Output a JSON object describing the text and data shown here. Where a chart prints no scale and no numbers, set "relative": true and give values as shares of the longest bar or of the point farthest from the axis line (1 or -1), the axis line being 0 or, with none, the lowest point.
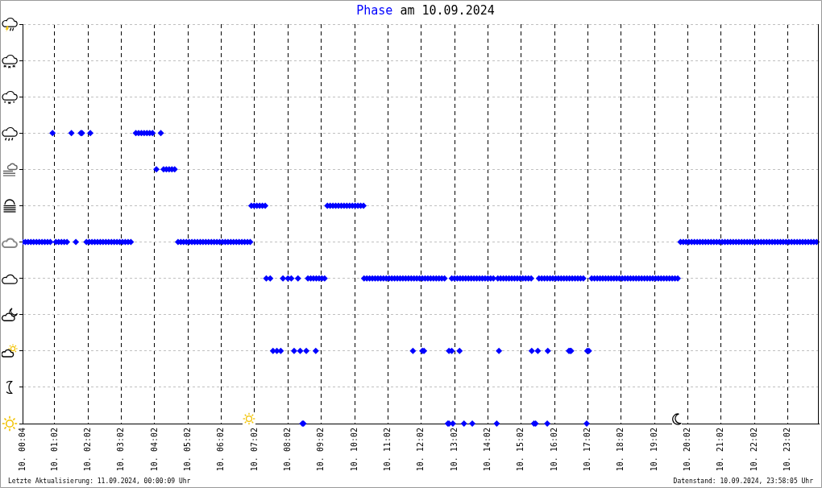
{
  "chart_data": {
    "type": "scatter",
    "title": "am 10.09.2024",
    "legend": "top",
    "marker": "diamond",
    "grid": true,
    "tick_labels": "x",
    "relative": true,
    "annotations": [
      "Letzte Aktualisierung: 11.09.2024, 00:00:09 Uhr",
      "Datenstand: 10.09.2024, 23:58:05 Uhr"
    ],
    "xlim": [
      "2024-09-10T00:04",
      "2024-09-10T23:58"
    ],
    "xticks": [
      {
        "value": "2024-09-10T00:04",
        "label": "10. 00:04"
      },
      {
        "value": "2024-09-10T01:02",
        "label": "10. 01:02"
      },
      {
        "value": "2024-09-10T02:02",
        "label": "10. 02:02"
      },
      {
        "value": "2024-09-10T03:02",
        "label": "10. 03:02"
      },
      {
        "value": "2024-09-10T04:02",
        "label": "10. 04:02"
      },
      {
        "value": "2024-09-10T05:02",
        "label": "10. 05:02"
      },
      {
        "value": "2024-09-10T06:02",
        "label": "10. 06:02"
      },
      {
        "value": "2024-09-10T07:02",
        "label": "10. 07:02"
      },
      {
        "value": "2024-09-10T08:02",
        "label": "10. 08:02"
      },
      {
        "value": "2024-09-10T09:02",
        "label": "10. 09:02"
      },
      {
        "value": "2024-09-10T10:02",
        "label": "10. 10:02"
      },
      {
        "value": "2024-09-10T11:02",
        "label": "10. 11:02"
      },
      {
        "value": "2024-09-10T12:02",
        "label": "10. 12:02"
      },
      {
        "value": "2024-09-10T13:02",
        "label": "10. 13:02"
      },
      {
        "value": "2024-09-10T14:02",
        "label": "10. 14:02"
      },
      {
        "value": "2024-09-10T15:02",
        "label": "10. 15:02"
      },
      {
        "value": "2024-09-10T16:02",
        "label": "10. 16:02"
      },
      {
        "value": "2024-09-10T17:02",
        "label": "10. 17:02"
      },
      {
        "value": "2024-09-10T18:02",
        "label": "10. 18:02"
      },
      {
        "value": "2024-09-10T19:02",
        "label": "10. 19:02"
      },
      {
        "value": "2024-09-10T20:02",
        "label": "10. 20:02"
      },
      {
        "value": "2024-09-10T21:02",
        "label": "10. 21:02"
      },
      {
        "value": "2024-09-10T22:02",
        "label": "10. 22:02"
      },
      {
        "value": "2024-09-10T23:02",
        "label": "10. 23:02"
      }
    ],
    "series": [
      {
        "name": "Phase",
        "color": "#0000ff",
        "x": [
          "2024-09-10T00:04",
          "2024-09-10T00:09",
          "2024-09-10T00:14",
          "2024-09-10T00:19",
          "2024-09-10T00:24",
          "2024-09-10T00:29",
          "2024-09-10T00:34",
          "2024-09-10T00:39",
          "2024-09-10T00:44",
          "2024-09-10T00:49",
          "2024-09-10T00:54",
          "2024-09-10T01:04",
          "2024-09-10T01:09",
          "2024-09-10T01:14",
          "2024-09-10T01:19",
          "2024-09-10T01:24",
          "2024-09-10T01:40",
          "2024-09-10T01:59",
          "2024-09-10T02:04",
          "2024-09-10T02:09",
          "2024-09-10T02:14",
          "2024-09-10T02:19",
          "2024-09-10T02:24",
          "2024-09-10T02:29",
          "2024-09-10T02:34",
          "2024-09-10T02:39",
          "2024-09-10T02:44",
          "2024-09-10T02:49",
          "2024-09-10T02:54",
          "2024-09-10T02:59",
          "2024-09-10T03:04",
          "2024-09-10T03:09",
          "2024-09-10T03:14",
          "2024-09-10T03:19",
          "2024-09-10T04:44",
          "2024-09-10T04:49",
          "2024-09-10T04:54",
          "2024-09-10T04:59",
          "2024-09-10T05:04",
          "2024-09-10T05:09",
          "2024-09-10T05:14",
          "2024-09-10T05:19",
          "2024-09-10T05:24",
          "2024-09-10T05:29",
          "2024-09-10T05:34",
          "2024-09-10T05:39",
          "2024-09-10T05:44",
          "2024-09-10T05:49",
          "2024-09-10T05:54",
          "2024-09-10T05:59",
          "2024-09-10T06:04",
          "2024-09-10T06:09",
          "2024-09-10T06:14",
          "2024-09-10T06:19",
          "2024-09-10T06:24",
          "2024-09-10T06:29",
          "2024-09-10T06:34",
          "2024-09-10T06:39",
          "2024-09-10T06:44",
          "2024-09-10T06:49",
          "2024-09-10T06:54",
          "2024-09-10T19:49",
          "2024-09-10T19:54",
          "2024-09-10T19:59",
          "2024-09-10T20:04",
          "2024-09-10T20:09",
          "2024-09-10T20:14",
          "2024-09-10T20:19",
          "2024-09-10T20:24",
          "2024-09-10T20:29",
          "2024-09-10T20:34",
          "2024-09-10T20:39",
          "2024-09-10T20:44",
          "2024-09-10T20:49",
          "2024-09-10T20:54",
          "2024-09-10T20:59",
          "2024-09-10T21:04",
          "2024-09-10T21:09",
          "2024-09-10T21:14",
          "2024-09-10T21:19",
          "2024-09-10T21:24",
          "2024-09-10T21:29",
          "2024-09-10T21:34",
          "2024-09-10T21:39",
          "2024-09-10T21:44",
          "2024-09-10T21:49",
          "2024-09-10T21:54",
          "2024-09-10T21:59",
          "2024-09-10T22:04",
          "2024-09-10T22:09",
          "2024-09-10T22:14",
          "2024-09-10T22:19",
          "2024-09-10T22:24",
          "2024-09-10T22:29",
          "2024-09-10T22:34",
          "2024-09-10T22:39",
          "2024-09-10T22:44",
          "2024-09-10T22:49",
          "2024-09-10T22:54",
          "2024-09-10T22:59",
          "2024-09-10T23:04",
          "2024-09-10T23:09",
          "2024-09-10T23:14",
          "2024-09-10T23:19",
          "2024-09-10T23:24",
          "2024-09-10T23:29",
          "2024-09-10T23:34",
          "2024-09-10T23:39",
          "2024-09-10T23:44",
          "2024-09-10T23:49",
          "2024-09-10T23:54",
          "2024-09-10T00:58",
          "2024-09-10T01:32",
          "2024-09-10T01:49",
          "2024-09-10T01:51",
          "2024-09-10T02:06",
          "2024-09-10T03:28",
          "2024-09-10T03:33",
          "2024-09-10T03:38",
          "2024-09-10T03:43",
          "2024-09-10T03:48",
          "2024-09-10T03:53",
          "2024-09-10T03:58",
          "2024-09-10T04:13",
          "2024-09-10T04:05",
          "2024-09-10T04:18",
          "2024-09-10T04:23",
          "2024-09-10T04:28",
          "2024-09-10T04:33",
          "2024-09-10T04:38",
          "2024-09-10T06:56",
          "2024-09-10T07:01",
          "2024-09-10T07:06",
          "2024-09-10T07:11",
          "2024-09-10T07:16",
          "2024-09-10T07:21",
          "2024-09-10T09:13",
          "2024-09-10T09:18",
          "2024-09-10T09:23",
          "2024-09-10T09:28",
          "2024-09-10T09:33",
          "2024-09-10T09:38",
          "2024-09-10T09:43",
          "2024-09-10T09:48",
          "2024-09-10T09:53",
          "2024-09-10T09:58",
          "2024-09-10T10:03",
          "2024-09-10T10:08",
          "2024-09-10T10:13",
          "2024-09-10T10:18",
          "2024-09-10T07:23",
          "2024-09-10T07:30",
          "2024-09-10T07:53",
          "2024-09-10T08:02",
          "2024-09-10T08:08",
          "2024-09-10T08:20",
          "2024-09-10T08:38",
          "2024-09-10T08:43",
          "2024-09-10T08:48",
          "2024-09-10T08:53",
          "2024-09-10T08:58",
          "2024-09-10T09:03",
          "2024-09-10T09:08",
          "2024-09-10T10:19",
          "2024-09-10T10:24",
          "2024-09-10T10:29",
          "2024-09-10T10:34",
          "2024-09-10T10:39",
          "2024-09-10T10:44",
          "2024-09-10T10:49",
          "2024-09-10T10:54",
          "2024-09-10T10:59",
          "2024-09-10T11:04",
          "2024-09-10T11:09",
          "2024-09-10T11:14",
          "2024-09-10T11:19",
          "2024-09-10T11:24",
          "2024-09-10T11:29",
          "2024-09-10T11:34",
          "2024-09-10T11:39",
          "2024-09-10T11:44",
          "2024-09-10T11:49",
          "2024-09-10T11:54",
          "2024-09-10T11:59",
          "2024-09-10T12:04",
          "2024-09-10T12:09",
          "2024-09-10T12:14",
          "2024-09-10T12:19",
          "2024-09-10T12:24",
          "2024-09-10T12:29",
          "2024-09-10T12:34",
          "2024-09-10T12:39",
          "2024-09-10T12:44",
          "2024-09-10T12:57",
          "2024-09-10T13:02",
          "2024-09-10T13:07",
          "2024-09-10T13:12",
          "2024-09-10T13:17",
          "2024-09-10T13:22",
          "2024-09-10T13:27",
          "2024-09-10T13:32",
          "2024-09-10T13:37",
          "2024-09-10T13:42",
          "2024-09-10T13:47",
          "2024-09-10T13:52",
          "2024-09-10T13:57",
          "2024-09-10T14:02",
          "2024-09-10T14:07",
          "2024-09-10T14:12",
          "2024-09-10T14:20",
          "2024-09-10T14:25",
          "2024-09-10T14:30",
          "2024-09-10T14:35",
          "2024-09-10T14:40",
          "2024-09-10T14:45",
          "2024-09-10T14:50",
          "2024-09-10T14:55",
          "2024-09-10T15:00",
          "2024-09-10T15:05",
          "2024-09-10T15:10",
          "2024-09-10T15:15",
          "2024-09-10T15:20",
          "2024-09-10T15:34",
          "2024-09-10T15:39",
          "2024-09-10T15:44",
          "2024-09-10T15:49",
          "2024-09-10T15:54",
          "2024-09-10T15:59",
          "2024-09-10T16:04",
          "2024-09-10T16:09",
          "2024-09-10T16:14",
          "2024-09-10T16:19",
          "2024-09-10T16:24",
          "2024-09-10T16:29",
          "2024-09-10T16:34",
          "2024-09-10T16:39",
          "2024-09-10T16:44",
          "2024-09-10T16:49",
          "2024-09-10T16:54",
          "2024-09-10T17:09",
          "2024-09-10T17:14",
          "2024-09-10T17:19",
          "2024-09-10T17:24",
          "2024-09-10T17:29",
          "2024-09-10T17:34",
          "2024-09-10T17:39",
          "2024-09-10T17:44",
          "2024-09-10T17:49",
          "2024-09-10T17:54",
          "2024-09-10T17:59",
          "2024-09-10T18:04",
          "2024-09-10T18:09",
          "2024-09-10T18:14",
          "2024-09-10T18:19",
          "2024-09-10T18:24",
          "2024-09-10T18:29",
          "2024-09-10T18:34",
          "2024-09-10T18:39",
          "2024-09-10T18:44",
          "2024-09-10T18:49",
          "2024-09-10T18:54",
          "2024-09-10T18:59",
          "2024-09-10T19:04",
          "2024-09-10T19:09",
          "2024-09-10T19:14",
          "2024-09-10T19:19",
          "2024-09-10T19:24",
          "2024-09-10T19:29",
          "2024-09-10T19:34",
          "2024-09-10T19:39",
          "2024-09-10T19:44",
          "2024-09-10T07:35",
          "2024-09-10T07:42",
          "2024-09-10T07:49",
          "2024-09-10T08:13",
          "2024-09-10T08:24",
          "2024-09-10T08:35",
          "2024-09-10T08:52",
          "2024-09-10T11:47",
          "2024-09-10T12:04",
          "2024-09-10T12:07",
          "2024-09-10T12:52",
          "2024-09-10T12:57",
          "2024-09-10T13:11",
          "2024-09-10T14:22",
          "2024-09-10T15:21",
          "2024-09-10T15:32",
          "2024-09-10T15:50",
          "2024-09-10T16:28",
          "2024-09-10T16:30",
          "2024-09-10T16:32",
          "2024-09-10T17:01",
          "2024-09-10T17:04",
          "2024-09-10T08:28",
          "2024-09-10T08:30",
          "2024-09-10T12:50",
          "2024-09-10T12:52",
          "2024-09-10T12:59",
          "2024-09-10T13:19",
          "2024-09-10T13:34",
          "2024-09-10T14:18",
          "2024-09-10T15:25",
          "2024-09-10T15:28",
          "2024-09-10T15:49",
          "2024-09-10T17:00"
        ],
        "values": [
          0.625,
          0.625,
          0.625,
          0.625,
          0.625,
          0.625,
          0.625,
          0.625,
          0.625,
          0.625,
          0.625,
          0.625,
          0.625,
          0.625,
          0.625,
          0.625,
          0.625,
          0.625,
          0.625,
          0.625,
          0.625,
          0.625,
          0.625,
          0.625,
          0.625,
          0.625,
          0.625,
          0.625,
          0.625,
          0.625,
          0.625,
          0.625,
          0.625,
          0.625,
          0.625,
          0.625,
          0.625,
          0.625,
          0.625,
          0.625,
          0.625,
          0.625,
          0.625,
          0.625,
          0.625,
          0.625,
          0.625,
          0.625,
          0.625,
          0.625,
          0.625,
          0.625,
          0.625,
          0.625,
          0.625,
          0.625,
          0.625,
          0.625,
          0.625,
          0.625,
          0.625,
          0.625,
          0.625,
          0.625,
          0.625,
          0.625,
          0.625,
          0.625,
          0.625,
          0.625,
          0.625,
          0.625,
          0.625,
          0.625,
          0.625,
          0.625,
          0.625,
          0.625,
          0.625,
          0.625,
          0.625,
          0.625,
          0.625,
          0.625,
          0.625,
          0.625,
          0.625,
          0.625,
          0.625,
          0.625,
          0.625,
          0.625,
          0.625,
          0.625,
          0.625,
          0.625,
          0.625,
          0.625,
          0.625,
          0.625,
          0.625,
          0.625,
          0.625,
          0.625,
          0.625,
          0.625,
          0.625,
          0.625,
          0.625,
          0.625,
          0.625,
          1,
          1,
          1,
          1,
          1,
          1,
          1,
          1,
          1,
          1,
          1,
          1,
          1,
          0.875,
          0.875,
          0.875,
          0.875,
          0.875,
          0.875,
          0.75,
          0.75,
          0.75,
          0.75,
          0.75,
          0.75,
          0.75,
          0.75,
          0.75,
          0.75,
          0.75,
          0.75,
          0.75,
          0.75,
          0.75,
          0.75,
          0.75,
          0.75,
          0.75,
          0.75,
          0.5,
          0.5,
          0.5,
          0.5,
          0.5,
          0.5,
          0.5,
          0.5,
          0.5,
          0.5,
          0.5,
          0.5,
          0.5,
          0.5,
          0.5,
          0.5,
          0.5,
          0.5,
          0.5,
          0.5,
          0.5,
          0.5,
          0.5,
          0.5,
          0.5,
          0.5,
          0.5,
          0.5,
          0.5,
          0.5,
          0.5,
          0.5,
          0.5,
          0.5,
          0.5,
          0.5,
          0.5,
          0.5,
          0.5,
          0.5,
          0.5,
          0.5,
          0.5,
          0.5,
          0.5,
          0.5,
          0.5,
          0.5,
          0.5,
          0.5,
          0.5,
          0.5,
          0.5,
          0.5,
          0.5,
          0.5,
          0.5,
          0.5,
          0.5,
          0.5,
          0.5,
          0.5,
          0.5,
          0.5,
          0.5,
          0.5,
          0.5,
          0.5,
          0.5,
          0.5,
          0.5,
          0.5,
          0.5,
          0.5,
          0.5,
          0.5,
          0.5,
          0.5,
          0.5,
          0.5,
          0.5,
          0.5,
          0.5,
          0.5,
          0.5,
          0.5,
          0.5,
          0.5,
          0.5,
          0.5,
          0.5,
          0.5,
          0.5,
          0.5,
          0.5,
          0.5,
          0.5,
          0.5,
          0.5,
          0.5,
          0.5,
          0.5,
          0.5,
          0.5,
          0.5,
          0.5,
          0.5,
          0.5,
          0.5,
          0.5,
          0.5,
          0.5,
          0.5,
          0.5,
          0.5,
          0.5,
          0.5,
          0.5,
          0.5,
          0.5,
          0.5,
          0.25,
          0.25,
          0.25,
          0.25,
          0.25,
          0.25,
          0.25,
          0.25,
          0.25,
          0.25,
          0.25,
          0.25,
          0.25,
          0.25,
          0.25,
          0.25,
          0.25,
          0.25,
          0.25,
          0.25,
          0.25,
          0.25,
          0,
          0,
          0,
          0,
          0,
          0,
          0,
          0,
          0,
          0,
          0,
          0
        ]
      }
    ]
  }
}
